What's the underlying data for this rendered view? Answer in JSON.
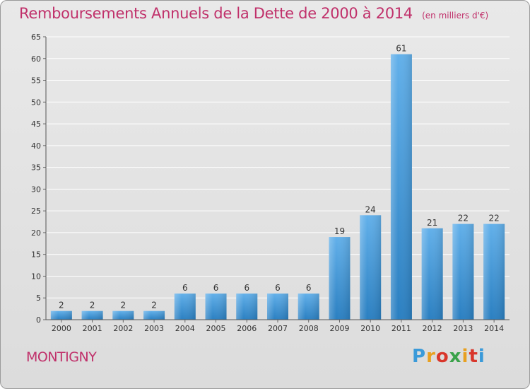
{
  "colors": {
    "title": "#c0306a",
    "bar_top": "#62b0ea",
    "bar_bottom": "#2a7fc1",
    "grid": "#ffffff"
  },
  "chart_data": {
    "type": "bar",
    "title": "Remboursements Annuels de la Dette de 2000 à 2014",
    "unit_note": "(en milliers d'€)",
    "categories": [
      "2000",
      "2001",
      "2002",
      "2003",
      "2004",
      "2005",
      "2006",
      "2007",
      "2008",
      "2009",
      "2010",
      "2011",
      "2012",
      "2013",
      "2014"
    ],
    "values": [
      2,
      2,
      2,
      2,
      6,
      6,
      6,
      6,
      6,
      19,
      24,
      61,
      21,
      22,
      22
    ],
    "ylim": [
      0,
      65
    ],
    "yticks": [
      0,
      5,
      10,
      15,
      20,
      25,
      30,
      35,
      40,
      45,
      50,
      55,
      60,
      65
    ],
    "grid": true,
    "xlabel": "",
    "ylabel": ""
  },
  "footer": {
    "town": "MONTIGNY",
    "logo_letters": [
      "P",
      "r",
      "o",
      "x",
      "i",
      "t",
      "i"
    ],
    "logo_colors": [
      "#3a9ad9",
      "#e8a020",
      "#d9362b",
      "#3aa24a",
      "#e8a020",
      "#d9362b",
      "#3a9ad9"
    ]
  }
}
